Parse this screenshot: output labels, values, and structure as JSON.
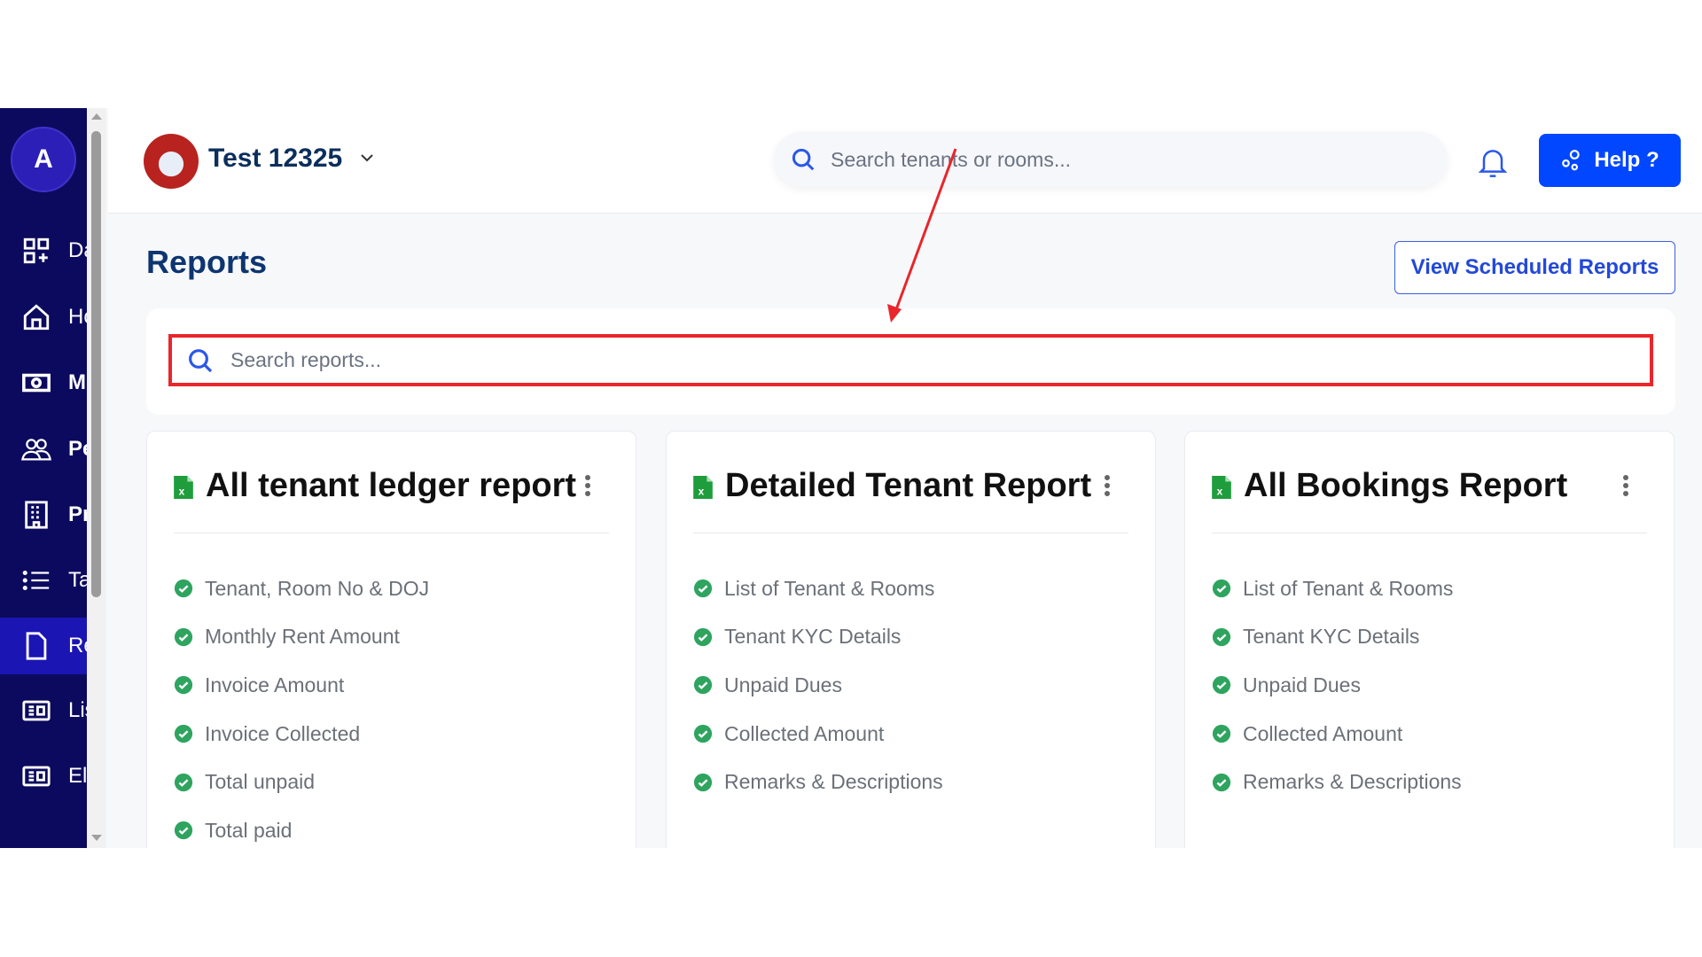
{
  "sidebar": {
    "avatar_letter": "A",
    "items": [
      {
        "label": "Da",
        "icon": "dashboard-icon"
      },
      {
        "label": "Ho",
        "icon": "home-icon"
      },
      {
        "label": "M",
        "icon": "money-icon"
      },
      {
        "label": "Pe",
        "icon": "people-icon"
      },
      {
        "label": "Pr",
        "icon": "building-icon"
      },
      {
        "label": "Ta",
        "icon": "list-icon"
      },
      {
        "label": "Re",
        "icon": "report-icon",
        "active": true
      },
      {
        "label": "Lis",
        "icon": "listing-icon"
      },
      {
        "label": "El",
        "icon": "meter-icon"
      }
    ]
  },
  "header": {
    "property_name": "Test 12325",
    "search_placeholder": "Search tenants or rooms...",
    "help_label": "Help ?"
  },
  "page": {
    "title": "Reports",
    "scheduled_button": "View Scheduled Reports",
    "search_placeholder": "Search reports..."
  },
  "reports": [
    {
      "title": "All tenant ledger report",
      "items": [
        "Tenant, Room No & DOJ",
        "Monthly Rent Amount",
        "Invoice Amount",
        "Invoice Collected",
        "Total unpaid",
        "Total paid"
      ]
    },
    {
      "title": "Detailed Tenant Report",
      "items": [
        "List of Tenant & Rooms",
        "Tenant KYC Details",
        "Unpaid Dues",
        "Collected Amount",
        "Remarks & Descriptions"
      ]
    },
    {
      "title": "All Bookings Report",
      "items": [
        "List of Tenant & Rooms",
        "Tenant KYC Details",
        "Unpaid Dues",
        "Collected Amount",
        "Remarks & Descriptions"
      ]
    }
  ],
  "colors": {
    "sidebar": "#0c0a5e",
    "active": "#1b15b3",
    "primary": "#0047ff",
    "highlight": "#e8262b",
    "check": "#2ea45f"
  }
}
